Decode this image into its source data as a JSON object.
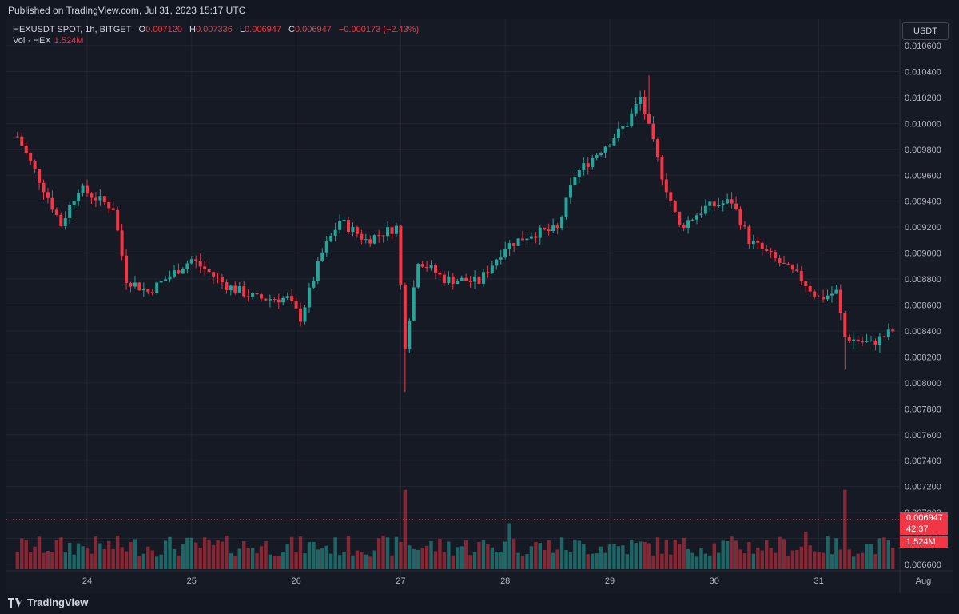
{
  "published": "Published on TradingView.com, Jul 31, 2023 15:17 UTC",
  "legend": {
    "symbol": "HEXUSDT SPOT, 1h, BITGET",
    "o_label": "O",
    "o": "0.007120",
    "h_label": "H",
    "h": "0.007336",
    "l_label": "L",
    "l": "0.006947",
    "c_label": "C",
    "c": "0.006947",
    "change": "−0.000173 (−2.43%)",
    "vol_label": "Vol · HEX",
    "vol": "1.524M"
  },
  "currency": "USDT",
  "price_tag": {
    "price": "0.006947",
    "countdown": "42:37",
    "volume": "1.524M"
  },
  "brand": "TradingView",
  "colors": {
    "up": "#26a69a",
    "down": "#f23645",
    "background": "#161a25",
    "grid": "#232632"
  },
  "chart_data": {
    "type": "candlestick",
    "y_axis_labels": [
      "0.010600",
      "0.010400",
      "0.010200",
      "0.010000",
      "0.009800",
      "0.009600",
      "0.009400",
      "0.009200",
      "0.009000",
      "0.008800",
      "0.008600",
      "0.008400",
      "0.008200",
      "0.008000",
      "0.007800",
      "0.007600",
      "0.007400",
      "0.007200",
      "0.007000",
      "0.006800",
      "0.006600"
    ],
    "ylim": [
      0.0065,
      0.0107
    ],
    "x_axis_labels": [
      "24",
      "25",
      "26",
      "27",
      "28",
      "29",
      "30",
      "31",
      "Aug"
    ],
    "x_label_hours": [
      16,
      40,
      64,
      88,
      112,
      136,
      160,
      184,
      208
    ],
    "start_hour": 0,
    "last_price": 0.006947,
    "ohlc": [],
    "volumes": []
  }
}
